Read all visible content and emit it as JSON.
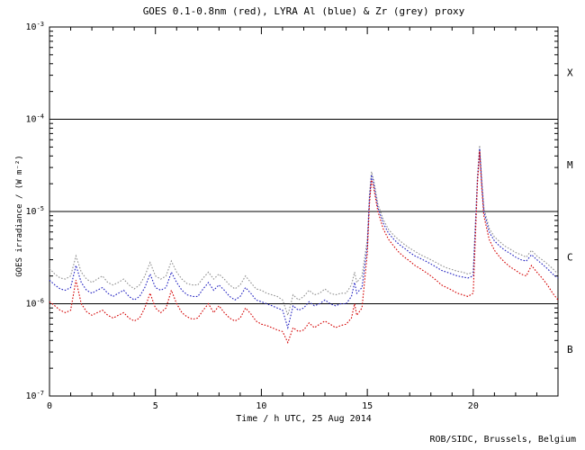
{
  "page": {
    "credit": "ROB/SIDC, Brussels, Belgium"
  },
  "chart_data": {
    "type": "line",
    "title": "GOES 0.1-0.8nm (red), LYRA Al (blue) & Zr (grey) proxy",
    "xlabel": "Time / h UTC, 25 Aug 2014",
    "ylabel": "GOES irradiance / (W m⁻²)",
    "y_scale": "log",
    "y_exp_range": [
      -7,
      -3
    ],
    "y_tick_exponents": [
      -7,
      -6,
      -5,
      -4,
      -3
    ],
    "x_range": [
      0,
      24
    ],
    "x_major_ticks": [
      0,
      5,
      10,
      15,
      20
    ],
    "x_minor_step": 1,
    "grid": "off",
    "hlines": [
      0.0001,
      1e-05,
      1e-06
    ],
    "flare_classes": [
      {
        "label": "X",
        "level": 0.00032
      },
      {
        "label": "M",
        "level": 3.2e-05
      },
      {
        "label": "C",
        "level": 3.2e-06
      },
      {
        "label": "B",
        "level": 3.2e-07
      }
    ],
    "x": [
      0,
      0.25,
      0.5,
      0.75,
      1,
      1.25,
      1.5,
      1.75,
      2,
      2.25,
      2.5,
      2.75,
      3,
      3.25,
      3.5,
      3.75,
      4,
      4.25,
      4.5,
      4.75,
      5,
      5.25,
      5.5,
      5.75,
      6,
      6.25,
      6.5,
      6.75,
      7,
      7.25,
      7.5,
      7.75,
      8,
      8.25,
      8.5,
      8.75,
      9,
      9.25,
      9.5,
      9.75,
      10,
      10.25,
      10.5,
      10.75,
      11,
      11.25,
      11.5,
      11.75,
      12,
      12.25,
      12.5,
      12.75,
      13,
      13.25,
      13.5,
      13.75,
      14,
      14.25,
      14.4,
      14.5,
      14.75,
      15,
      15.1,
      15.2,
      15.3,
      15.5,
      15.75,
      16,
      16.25,
      16.5,
      16.75,
      17,
      17.25,
      17.5,
      17.75,
      18,
      18.25,
      18.5,
      18.75,
      19,
      19.25,
      19.5,
      19.75,
      20,
      20.2,
      20.3,
      20.4,
      20.5,
      20.75,
      21,
      21.25,
      21.5,
      21.75,
      22,
      22.25,
      22.5,
      22.75,
      23,
      23.25,
      23.5,
      23.75,
      24
    ],
    "series": [
      {
        "name": "LYRA Zr proxy",
        "color": "#909090",
        "values": [
          2.4e-06,
          2.1e-06,
          1.9e-06,
          1.85e-06,
          2e-06,
          3.3e-06,
          2.2e-06,
          1.85e-06,
          1.7e-06,
          1.85e-06,
          2e-06,
          1.7e-06,
          1.6e-06,
          1.7e-06,
          1.85e-06,
          1.6e-06,
          1.45e-06,
          1.6e-06,
          2e-06,
          2.8e-06,
          2e-06,
          1.85e-06,
          2e-06,
          2.9e-06,
          2.2e-06,
          1.85e-06,
          1.65e-06,
          1.6e-06,
          1.6e-06,
          1.9e-06,
          2.2e-06,
          1.85e-06,
          2.1e-06,
          1.85e-06,
          1.6e-06,
          1.45e-06,
          1.6e-06,
          2e-06,
          1.7e-06,
          1.45e-06,
          1.4e-06,
          1.3e-06,
          1.25e-06,
          1.2e-06,
          1.1e-06,
          7.5e-07,
          1.25e-06,
          1.1e-06,
          1.2e-06,
          1.4e-06,
          1.25e-06,
          1.3e-06,
          1.45e-06,
          1.3e-06,
          1.25e-06,
          1.3e-06,
          1.3e-06,
          1.6e-06,
          2.2e-06,
          1.7e-06,
          2e-06,
          5e-06,
          1.5e-05,
          2.7e-05,
          2.2e-05,
          1.2e-05,
          8.2e-06,
          6.4e-06,
          5.5e-06,
          4.9e-06,
          4.4e-06,
          4e-06,
          3.7e-06,
          3.4e-06,
          3.2e-06,
          3e-06,
          2.8e-06,
          2.6e-06,
          2.45e-06,
          2.35e-06,
          2.25e-06,
          2.2e-06,
          2.1e-06,
          2.2e-06,
          2.4e-05,
          5.2e-05,
          2.2e-05,
          1.1e-05,
          6.6e-06,
          5.3e-06,
          4.7e-06,
          4.2e-06,
          3.9e-06,
          3.6e-06,
          3.4e-06,
          3.2e-06,
          3.8e-06,
          3.3e-06,
          3e-06,
          2.7e-06,
          2.4e-06,
          2.1e-06
        ]
      },
      {
        "name": "LYRA Al proxy",
        "color": "#2020c0",
        "values": [
          1.8e-06,
          1.6e-06,
          1.45e-06,
          1.4e-06,
          1.5e-06,
          2.6e-06,
          1.7e-06,
          1.4e-06,
          1.3e-06,
          1.4e-06,
          1.5e-06,
          1.3e-06,
          1.2e-06,
          1.3e-06,
          1.4e-06,
          1.2e-06,
          1.1e-06,
          1.2e-06,
          1.5e-06,
          2.1e-06,
          1.5e-06,
          1.4e-06,
          1.5e-06,
          2.2e-06,
          1.7e-06,
          1.4e-06,
          1.25e-06,
          1.2e-06,
          1.2e-06,
          1.45e-06,
          1.7e-06,
          1.4e-06,
          1.6e-06,
          1.4e-06,
          1.2e-06,
          1.1e-06,
          1.2e-06,
          1.5e-06,
          1.3e-06,
          1.1e-06,
          1.05e-06,
          1e-06,
          9.5e-07,
          9e-07,
          8.5e-07,
          5.5e-07,
          9.5e-07,
          8.5e-07,
          9e-07,
          1.05e-06,
          9.5e-07,
          1e-06,
          1.1e-06,
          1e-06,
          9.5e-07,
          1e-06,
          1e-06,
          1.2e-06,
          1.7e-06,
          1.3e-06,
          1.5e-06,
          4.2e-06,
          1.4e-05,
          2.5e-05,
          2e-05,
          1.1e-05,
          7.5e-06,
          5.8e-06,
          5e-06,
          4.4e-06,
          4e-06,
          3.6e-06,
          3.3e-06,
          3.1e-06,
          2.9e-06,
          2.7e-06,
          2.5e-06,
          2.3e-06,
          2.2e-06,
          2.1e-06,
          2e-06,
          1.95e-06,
          1.9e-06,
          2e-06,
          2.2e-05,
          4.8e-05,
          2e-05,
          1e-05,
          6e-06,
          4.8e-06,
          4.2e-06,
          3.8e-06,
          3.5e-06,
          3.2e-06,
          3e-06,
          2.9e-06,
          3.4e-06,
          3e-06,
          2.7e-06,
          2.4e-06,
          2.1e-06,
          1.9e-06
        ]
      },
      {
        "name": "GOES 0.1-0.8nm",
        "color": "#d40000",
        "values": [
          1.05e-06,
          9.5e-07,
          8.5e-07,
          8e-07,
          8.5e-07,
          1.8e-06,
          1e-06,
          8.2e-07,
          7.5e-07,
          8e-07,
          8.5e-07,
          7.5e-07,
          7e-07,
          7.5e-07,
          8e-07,
          7e-07,
          6.5e-07,
          7e-07,
          9e-07,
          1.3e-06,
          9e-07,
          8e-07,
          9e-07,
          1.4e-06,
          1e-06,
          8e-07,
          7.2e-07,
          6.8e-07,
          7e-07,
          8.5e-07,
          1e-06,
          8e-07,
          9.5e-07,
          8e-07,
          7e-07,
          6.5e-07,
          7e-07,
          9e-07,
          7.8e-07,
          6.5e-07,
          6e-07,
          5.8e-07,
          5.5e-07,
          5.2e-07,
          5e-07,
          3.8e-07,
          5.5e-07,
          5e-07,
          5.2e-07,
          6.2e-07,
          5.5e-07,
          6e-07,
          6.5e-07,
          6e-07,
          5.5e-07,
          5.8e-07,
          6e-07,
          7e-07,
          1e-06,
          7.5e-07,
          9e-07,
          3.5e-06,
          1.2e-05,
          2.2e-05,
          1.8e-05,
          1e-05,
          6.5e-06,
          5e-06,
          4.2e-06,
          3.6e-06,
          3.2e-06,
          2.9e-06,
          2.6e-06,
          2.4e-06,
          2.2e-06,
          2e-06,
          1.8e-06,
          1.6e-06,
          1.5e-06,
          1.4e-06,
          1.3e-06,
          1.25e-06,
          1.2e-06,
          1.3e-06,
          2e-05,
          4.5e-05,
          1.8e-05,
          9e-06,
          5e-06,
          3.8e-06,
          3.2e-06,
          2.8e-06,
          2.5e-06,
          2.3e-06,
          2.1e-06,
          2e-06,
          2.6e-06,
          2.2e-06,
          1.9e-06,
          1.6e-06,
          1.3e-06,
          1.1e-06
        ]
      }
    ]
  }
}
